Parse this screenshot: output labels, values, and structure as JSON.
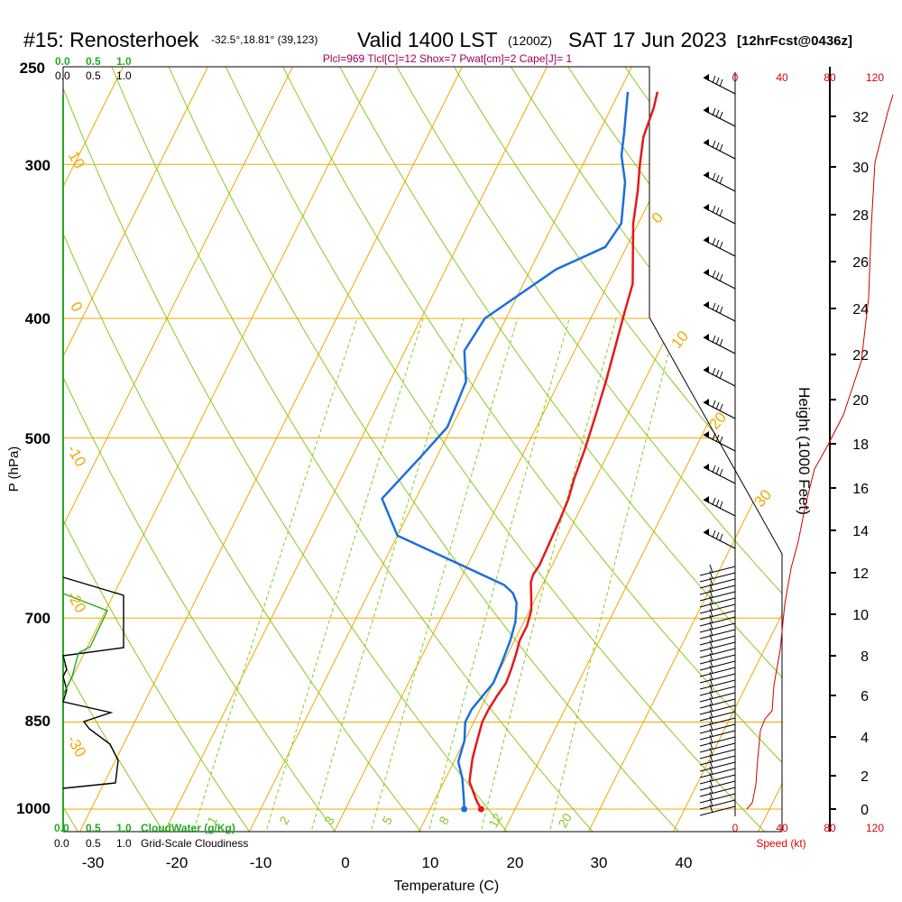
{
  "header": {
    "station": "#15: Renosterhoek",
    "location": "-32.5°,18.81° (39,123)",
    "valid": "Valid 1400 LST",
    "utc": "(1200Z)",
    "date": "SAT 17 Jun 2023",
    "forecast": "[12hrFcst@0436z]",
    "indices": "Plcl=969 Tlcl[C]=12 Shox=7 Pwat[cm]=2 Cape[J]= 1"
  },
  "colors": {
    "temperature": "#e41a1a",
    "dewpoint": "#1a6fe0",
    "isobar_isotherm": "#f0a800",
    "dry_adiabat": "#8bc820",
    "moist_adiabat": "#8bc820",
    "cloudwater": "#22aa22",
    "speed": "#cc0000",
    "index_text": "#a0005a"
  },
  "chart_data": {
    "type": "line",
    "title": "Skew-T log-P sounding",
    "xlabel": "Temperature (C)",
    "ylabel": "P (hPa)",
    "right_ylabel": "Height (1000 Feet)",
    "x_ticks": [
      "-30",
      "-20",
      "-10",
      "0",
      "10",
      "20",
      "30",
      "40"
    ],
    "y_ticks": [
      "250",
      "300",
      "400",
      "500",
      "700",
      "850",
      "1000"
    ],
    "height_ticks": [
      "0",
      "2",
      "4",
      "6",
      "8",
      "10",
      "12",
      "14",
      "16",
      "18",
      "20",
      "22",
      "24",
      "26",
      "28",
      "30",
      "32"
    ],
    "cloud_scale_top": {
      "green": [
        "0.0",
        "0.5",
        "1.0"
      ],
      "black": [
        "0.0",
        "0.5",
        "1.0"
      ]
    },
    "cloud_scale_bottom": {
      "green": [
        "0.0",
        "0.5",
        "1.0"
      ],
      "green_label": "CloudWater (g/Kg)",
      "black": [
        "0.0",
        "0.5",
        "1.0"
      ],
      "black_label": "Grid-Scale Cloudiness"
    },
    "speed_scale_top": [
      "0",
      "40",
      "80",
      "120"
    ],
    "speed_scale_bottom": [
      "0",
      "40",
      "80",
      "120"
    ],
    "speed_label": "Speed (kt)",
    "mixing_ratio_labels": [
      "1",
      "2",
      "3",
      "5",
      "8",
      "12",
      "20"
    ],
    "isotherm_labels": [
      "10",
      "0",
      "-10",
      "-20",
      "-30",
      "0",
      "10",
      "20",
      "30"
    ],
    "series": [
      {
        "name": "Temperature",
        "points": [
          [
            16,
            1000
          ],
          [
            15,
            985
          ],
          [
            13,
            950
          ],
          [
            12,
            910
          ],
          [
            11.5,
            880
          ],
          [
            11,
            850
          ],
          [
            11,
            830
          ],
          [
            11.2,
            810
          ],
          [
            11.5,
            790
          ],
          [
            11.3,
            770
          ],
          [
            11,
            750
          ],
          [
            10.6,
            730
          ],
          [
            10.6,
            710
          ],
          [
            10.2,
            690
          ],
          [
            9.5,
            675
          ],
          [
            9,
            665
          ],
          [
            8.5,
            655
          ],
          [
            8.3,
            645
          ],
          [
            8.5,
            635
          ],
          [
            8.4,
            615
          ],
          [
            8.2,
            580
          ],
          [
            8,
            560
          ],
          [
            7.5,
            540
          ],
          [
            7,
            510
          ],
          [
            6.3,
            480
          ],
          [
            5.5,
            450
          ],
          [
            4.5,
            420
          ],
          [
            3.6,
            395
          ],
          [
            2.9,
            375
          ],
          [
            1.2,
            355
          ],
          [
            -0.6,
            335
          ],
          [
            -2,
            315
          ],
          [
            -3.3,
            300
          ],
          [
            -4.5,
            285
          ],
          [
            -5,
            270
          ],
          [
            -5.5,
            262
          ]
        ]
      },
      {
        "name": "Dewpoint",
        "points": [
          [
            14,
            1000
          ],
          [
            13.5,
            985
          ],
          [
            12,
            945
          ],
          [
            10.5,
            915
          ],
          [
            10,
            880
          ],
          [
            9,
            850
          ],
          [
            9,
            830
          ],
          [
            9.5,
            810
          ],
          [
            10,
            790
          ],
          [
            9.8,
            760
          ],
          [
            9.5,
            730
          ],
          [
            9,
            705
          ],
          [
            8,
            680
          ],
          [
            7,
            668
          ],
          [
            5.5,
            658
          ],
          [
            -10,
            600
          ],
          [
            -14,
            560
          ],
          [
            -12,
            520
          ],
          [
            -10.5,
            490
          ],
          [
            -11,
            450
          ],
          [
            -13,
            425
          ],
          [
            -12.5,
            400
          ],
          [
            -7,
            365
          ],
          [
            -2.5,
            350
          ],
          [
            -2,
            335
          ],
          [
            -4,
            310
          ],
          [
            -6,
            295
          ],
          [
            -7,
            283
          ],
          [
            -9,
            262
          ]
        ]
      }
    ]
  }
}
